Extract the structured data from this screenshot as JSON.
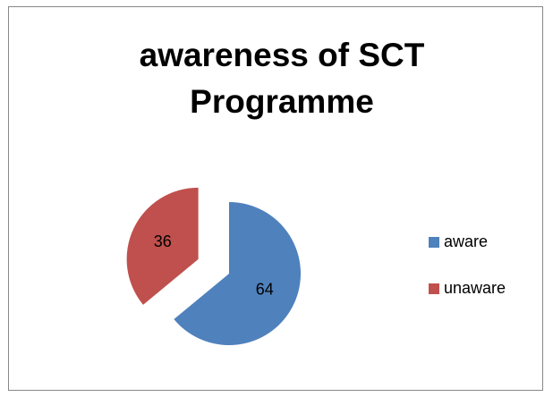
{
  "chart_data": {
    "type": "pie",
    "title": "awareness of SCT Programme",
    "categories": [
      "aware",
      "unaware"
    ],
    "values": [
      64,
      36
    ],
    "colors": [
      "#4f81bd",
      "#c0504d"
    ],
    "exploded": [
      false,
      true
    ],
    "legend": "right"
  }
}
